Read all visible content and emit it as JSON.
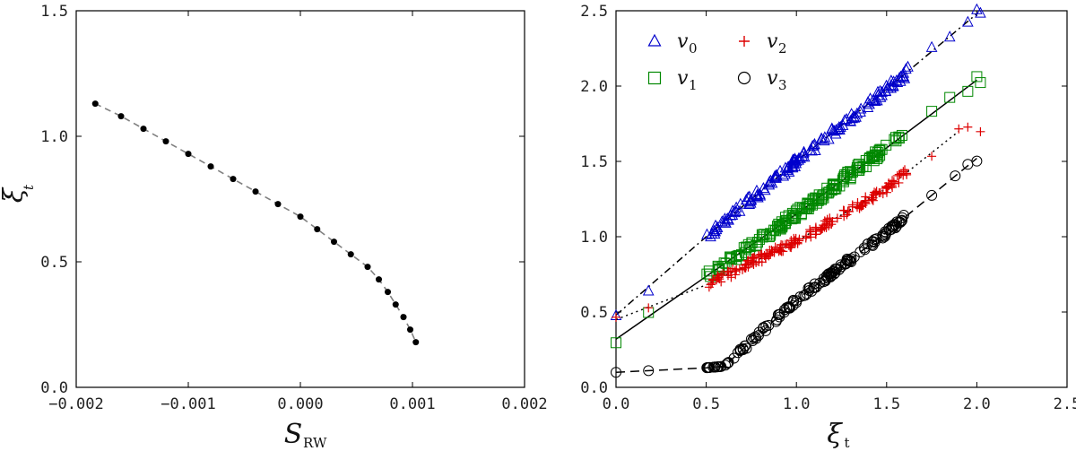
{
  "chart_data": [
    {
      "type": "scatter",
      "xlabel": "S",
      "xlabel_sub": "RW",
      "ylabel": "ξ",
      "ylabel_sub": "t",
      "xlim": [
        -0.002,
        0.002
      ],
      "ylim": [
        0.0,
        1.5
      ],
      "xticks": [
        -0.002,
        -0.001,
        0.0,
        0.001,
        0.002
      ],
      "xtick_labels": [
        "−0.002",
        "−0.001",
        "0.000",
        "0.001",
        "0.002"
      ],
      "yticks": [
        0.0,
        0.5,
        1.0,
        1.5
      ],
      "ytick_labels": [
        "0.0",
        "0.5",
        "1.0",
        "1.5"
      ],
      "series": [
        {
          "name": "points",
          "marker": "dot",
          "color": "#000000",
          "x": [
            -0.00183,
            -0.0016,
            -0.0014,
            -0.0012,
            -0.001,
            -0.0008,
            -0.0006,
            -0.0004,
            -0.0002,
            0.0,
            0.00015,
            0.0003,
            0.00045,
            0.0006,
            0.0007,
            0.00078,
            0.00085,
            0.00092,
            0.00098,
            0.00103
          ],
          "y": [
            1.13,
            1.08,
            1.03,
            0.98,
            0.93,
            0.88,
            0.83,
            0.78,
            0.73,
            0.68,
            0.63,
            0.58,
            0.53,
            0.48,
            0.43,
            0.38,
            0.33,
            0.28,
            0.23,
            0.18
          ],
          "fit": "dashed",
          "fit_color": "#808080"
        }
      ]
    },
    {
      "type": "scatter",
      "xlabel": "ξ",
      "xlabel_sub": "t",
      "ylabel": "",
      "xlim": [
        0.0,
        2.5
      ],
      "ylim": [
        0.0,
        2.5
      ],
      "xticks": [
        0.0,
        0.5,
        1.0,
        1.5,
        2.0,
        2.5
      ],
      "xtick_labels": [
        "0.0",
        "0.5",
        "1.0",
        "1.5",
        "2.0",
        "2.5"
      ],
      "yticks": [
        0.0,
        0.5,
        1.0,
        1.5,
        2.0,
        2.5
      ],
      "ytick_labels": [
        "0.0",
        "0.5",
        "1.0",
        "1.5",
        "2.0",
        "2.5"
      ],
      "legend_position": "top-left",
      "series": [
        {
          "name": "v",
          "sub": "0",
          "marker": "triangle",
          "color": "#0000cc",
          "fit": "dashdot",
          "fit_x": [
            0.0,
            0.5,
            1.0,
            1.5,
            2.0
          ],
          "fit_y": [
            0.48,
            1.0,
            1.5,
            1.98,
            2.48
          ]
        },
        {
          "name": "v",
          "sub": "1",
          "marker": "square",
          "color": "#008800",
          "fit": "solid",
          "fit_x": [
            0.0,
            0.6,
            1.0,
            1.5,
            2.0
          ],
          "fit_y": [
            0.32,
            0.82,
            1.15,
            1.59,
            2.04
          ]
        },
        {
          "name": "v",
          "sub": "2",
          "marker": "plus",
          "color": "#dd0000",
          "fit": "dotted",
          "fit_x": [
            0.0,
            0.5,
            1.0,
            1.5,
            1.9
          ],
          "fit_y": [
            0.45,
            0.68,
            0.97,
            1.32,
            1.7
          ]
        },
        {
          "name": "v",
          "sub": "3",
          "marker": "circle",
          "color": "#000000",
          "fit": "dashed",
          "fit_x": [
            0.0,
            0.5,
            0.6,
            1.0,
            1.5,
            2.0
          ],
          "fit_y": [
            0.1,
            0.13,
            0.14,
            0.58,
            1.03,
            1.52
          ]
        }
      ]
    }
  ]
}
